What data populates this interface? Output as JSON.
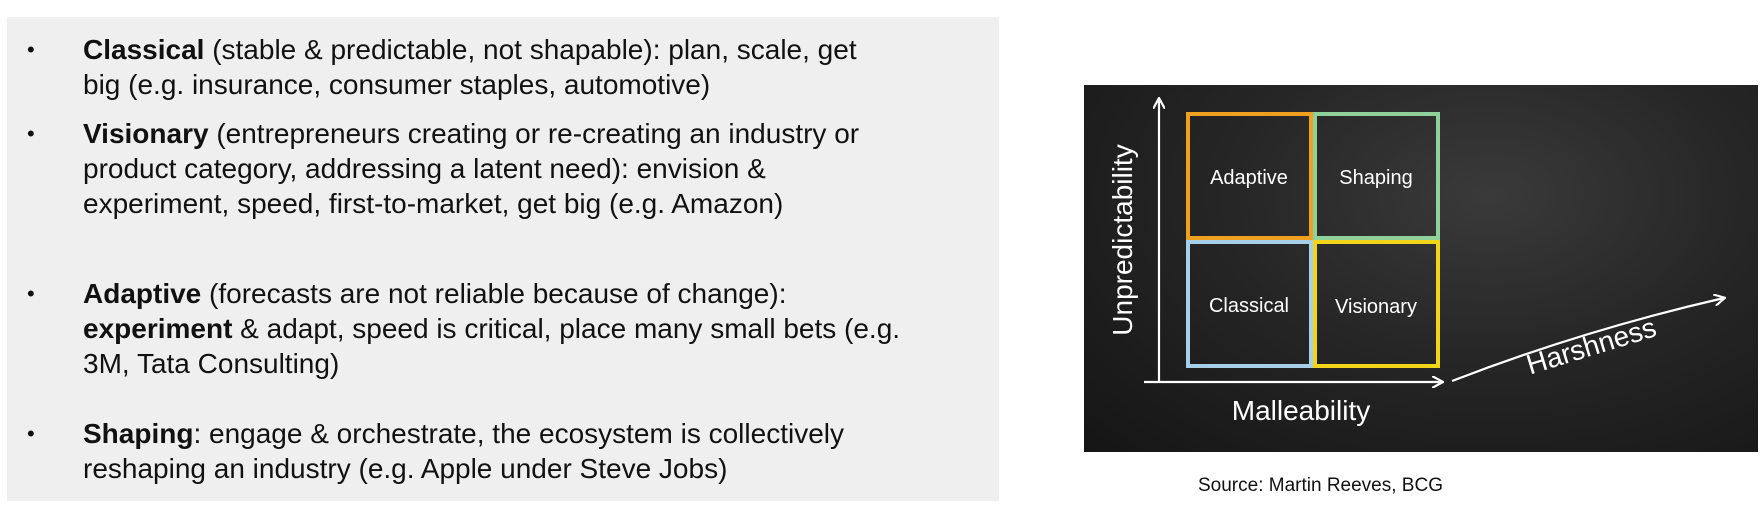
{
  "bullets": [
    {
      "bold": "Classical",
      "line1_rest": " (stable & predictable, not shapable):  plan, scale, get",
      "line2": "big (e.g. insurance, consumer staples, automotive)"
    },
    {
      "bold": "Visionary",
      "line1_rest": " (entrepreneurs creating or re-creating an industry or",
      "line2": "product category, addressing a latent need):  envision &",
      "line3": "experiment, speed, first-to-market, get big (e.g. Amazon)"
    },
    {
      "bold": "Adaptive",
      "line1_rest": " (forecasts are not reliable because of change):",
      "line2_bold": "experiment",
      "line2_rest": " & adapt, speed is critical, place many small bets (e.g.",
      "line3": "3M, Tata Consulting)"
    },
    {
      "bold": "Shaping",
      "line1_rest": ":  engage & orchestrate, the ecosystem is collectively",
      "line2": "reshaping an industry (e.g. Apple under Steve Jobs)"
    }
  ],
  "bullet_symbol": "•",
  "diagram": {
    "quadrants": {
      "top_left": "Adaptive",
      "top_right": "Shaping",
      "bottom_left": "Classical",
      "bottom_right": "Visionary"
    },
    "axis_y": "Unpredictability",
    "axis_x": "Malleability",
    "axis_diag": "Harshness",
    "colors": {
      "adaptive": "#f0a020",
      "shaping": "#8fd19a",
      "classical": "#a8cfe8",
      "visionary": "#f2d51a",
      "background": "#222222",
      "axes": "#ffffff"
    }
  },
  "source": "Source:  Martin Reeves, BCG"
}
